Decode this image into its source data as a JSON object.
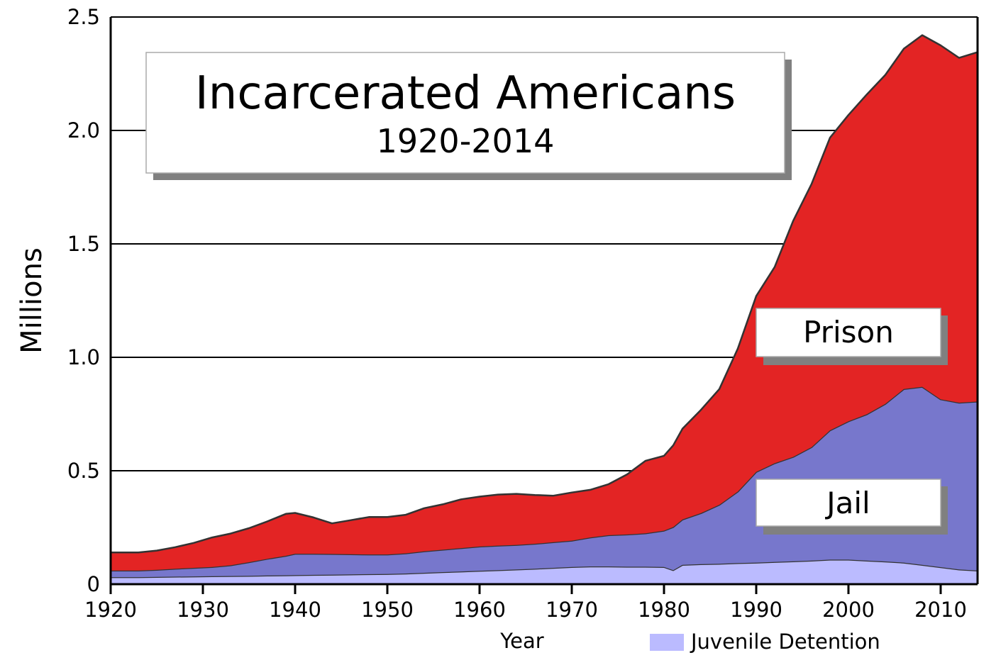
{
  "chart_data": {
    "type": "area",
    "stacked": true,
    "title": "Incarcerated Americans",
    "subtitle": "1920-2014",
    "xlabel": "Year",
    "ylabel": "Millions",
    "xlim": [
      1920,
      2014
    ],
    "ylim": [
      0,
      2.5
    ],
    "grid": true,
    "x_ticks": [
      1920,
      1930,
      1940,
      1950,
      1960,
      1970,
      1980,
      1990,
      2000,
      2010
    ],
    "x_tick_labels": [
      "1920",
      "1930",
      "1940",
      "1950",
      "1960",
      "1970",
      "1980",
      "1990",
      "2000",
      "2010"
    ],
    "y_ticks": [
      0,
      0.5,
      1.0,
      1.5,
      2.0,
      2.5
    ],
    "y_tick_labels": [
      "0",
      "0.5",
      "1.0",
      "1.5",
      "2.0",
      "2.5"
    ],
    "colors": {
      "juvenile": "#bbbbff",
      "jail": "#7777cc",
      "prison": "#e32424",
      "outline": "#333333",
      "grid": "#000000"
    },
    "labels": {
      "prison": "Prison",
      "jail": "Jail",
      "juvenile": "Juvenile Detention"
    },
    "x": [
      1920,
      1923,
      1925,
      1927,
      1929,
      1931,
      1933,
      1935,
      1937,
      1939,
      1940,
      1942,
      1944,
      1946,
      1948,
      1950,
      1952,
      1954,
      1956,
      1958,
      1960,
      1962,
      1964,
      1966,
      1968,
      1970,
      1972,
      1974,
      1976,
      1978,
      1980,
      1981,
      1982,
      1984,
      1986,
      1988,
      1990,
      1992,
      1994,
      1996,
      1998,
      2000,
      2002,
      2004,
      2006,
      2008,
      2010,
      2012,
      2014
    ],
    "series": [
      {
        "name": "Juvenile Detention",
        "key": "juvenile",
        "values": [
          0.031,
          0.031,
          0.032,
          0.033,
          0.034,
          0.035,
          0.036,
          0.037,
          0.038,
          0.039,
          0.04,
          0.041,
          0.042,
          0.043,
          0.044,
          0.045,
          0.047,
          0.05,
          0.053,
          0.056,
          0.059,
          0.062,
          0.065,
          0.068,
          0.072,
          0.076,
          0.078,
          0.078,
          0.077,
          0.077,
          0.076,
          0.062,
          0.085,
          0.088,
          0.09,
          0.093,
          0.095,
          0.098,
          0.101,
          0.104,
          0.108,
          0.108,
          0.104,
          0.1,
          0.095,
          0.085,
          0.075,
          0.065,
          0.06
        ]
      },
      {
        "name": "Jail",
        "key": "jail",
        "values": [
          0.029,
          0.029,
          0.031,
          0.035,
          0.038,
          0.041,
          0.047,
          0.06,
          0.074,
          0.086,
          0.094,
          0.093,
          0.091,
          0.089,
          0.087,
          0.086,
          0.089,
          0.095,
          0.099,
          0.103,
          0.107,
          0.108,
          0.108,
          0.11,
          0.113,
          0.116,
          0.128,
          0.138,
          0.142,
          0.147,
          0.16,
          0.19,
          0.2,
          0.225,
          0.26,
          0.315,
          0.4,
          0.435,
          0.46,
          0.5,
          0.57,
          0.61,
          0.645,
          0.695,
          0.765,
          0.785,
          0.74,
          0.735,
          0.745
        ]
      },
      {
        "name": "Prison",
        "key": "prison",
        "values": [
          0.08,
          0.08,
          0.085,
          0.095,
          0.11,
          0.13,
          0.14,
          0.15,
          0.165,
          0.185,
          0.18,
          0.16,
          0.135,
          0.15,
          0.165,
          0.165,
          0.17,
          0.19,
          0.2,
          0.215,
          0.22,
          0.225,
          0.225,
          0.215,
          0.205,
          0.212,
          0.21,
          0.225,
          0.265,
          0.32,
          0.33,
          0.36,
          0.4,
          0.455,
          0.51,
          0.63,
          0.775,
          0.865,
          1.04,
          1.16,
          1.29,
          1.35,
          1.41,
          1.45,
          1.5,
          1.55,
          1.56,
          1.52,
          1.54
        ]
      }
    ]
  }
}
